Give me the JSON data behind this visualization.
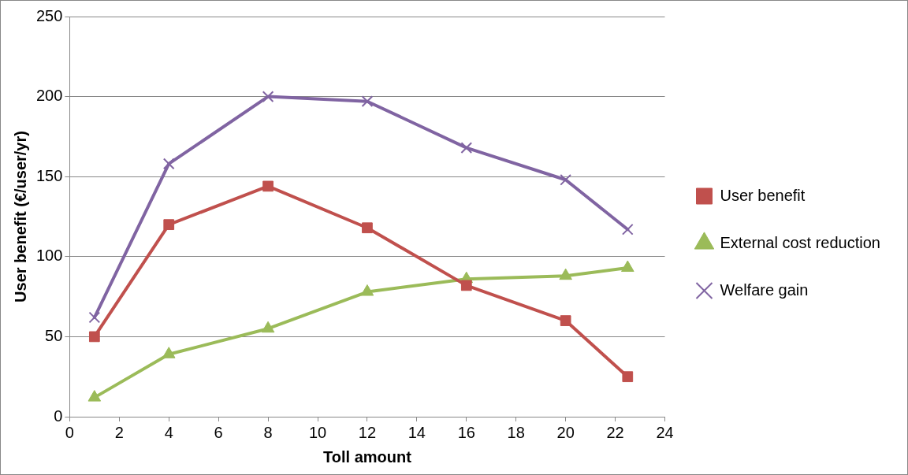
{
  "chart_data": {
    "type": "line",
    "xlabel": "Toll amount",
    "ylabel": "User benefit (€/user/yr)",
    "x": [
      1,
      4,
      8,
      12,
      16,
      20,
      22.5
    ],
    "series": [
      {
        "name": "User benefit",
        "color": "#c0504d",
        "marker": "square",
        "values": [
          50,
          120,
          144,
          118,
          82,
          60,
          25
        ]
      },
      {
        "name": "External cost reduction",
        "color": "#9bbb59",
        "marker": "triangle",
        "values": [
          12,
          39,
          55,
          78,
          86,
          88,
          93
        ]
      },
      {
        "name": "Welfare gain",
        "color": "#8064a2",
        "marker": "cross",
        "values": [
          62,
          158,
          200,
          197,
          168,
          148,
          117
        ]
      }
    ],
    "xlim": [
      0,
      24
    ],
    "xticks": [
      0,
      2,
      4,
      6,
      8,
      10,
      12,
      14,
      16,
      18,
      20,
      22,
      24
    ],
    "ylim": [
      0,
      250
    ],
    "yticks": [
      0,
      50,
      100,
      150,
      200,
      250
    ],
    "grid": "y",
    "legend": "right",
    "line_style": "solid"
  }
}
